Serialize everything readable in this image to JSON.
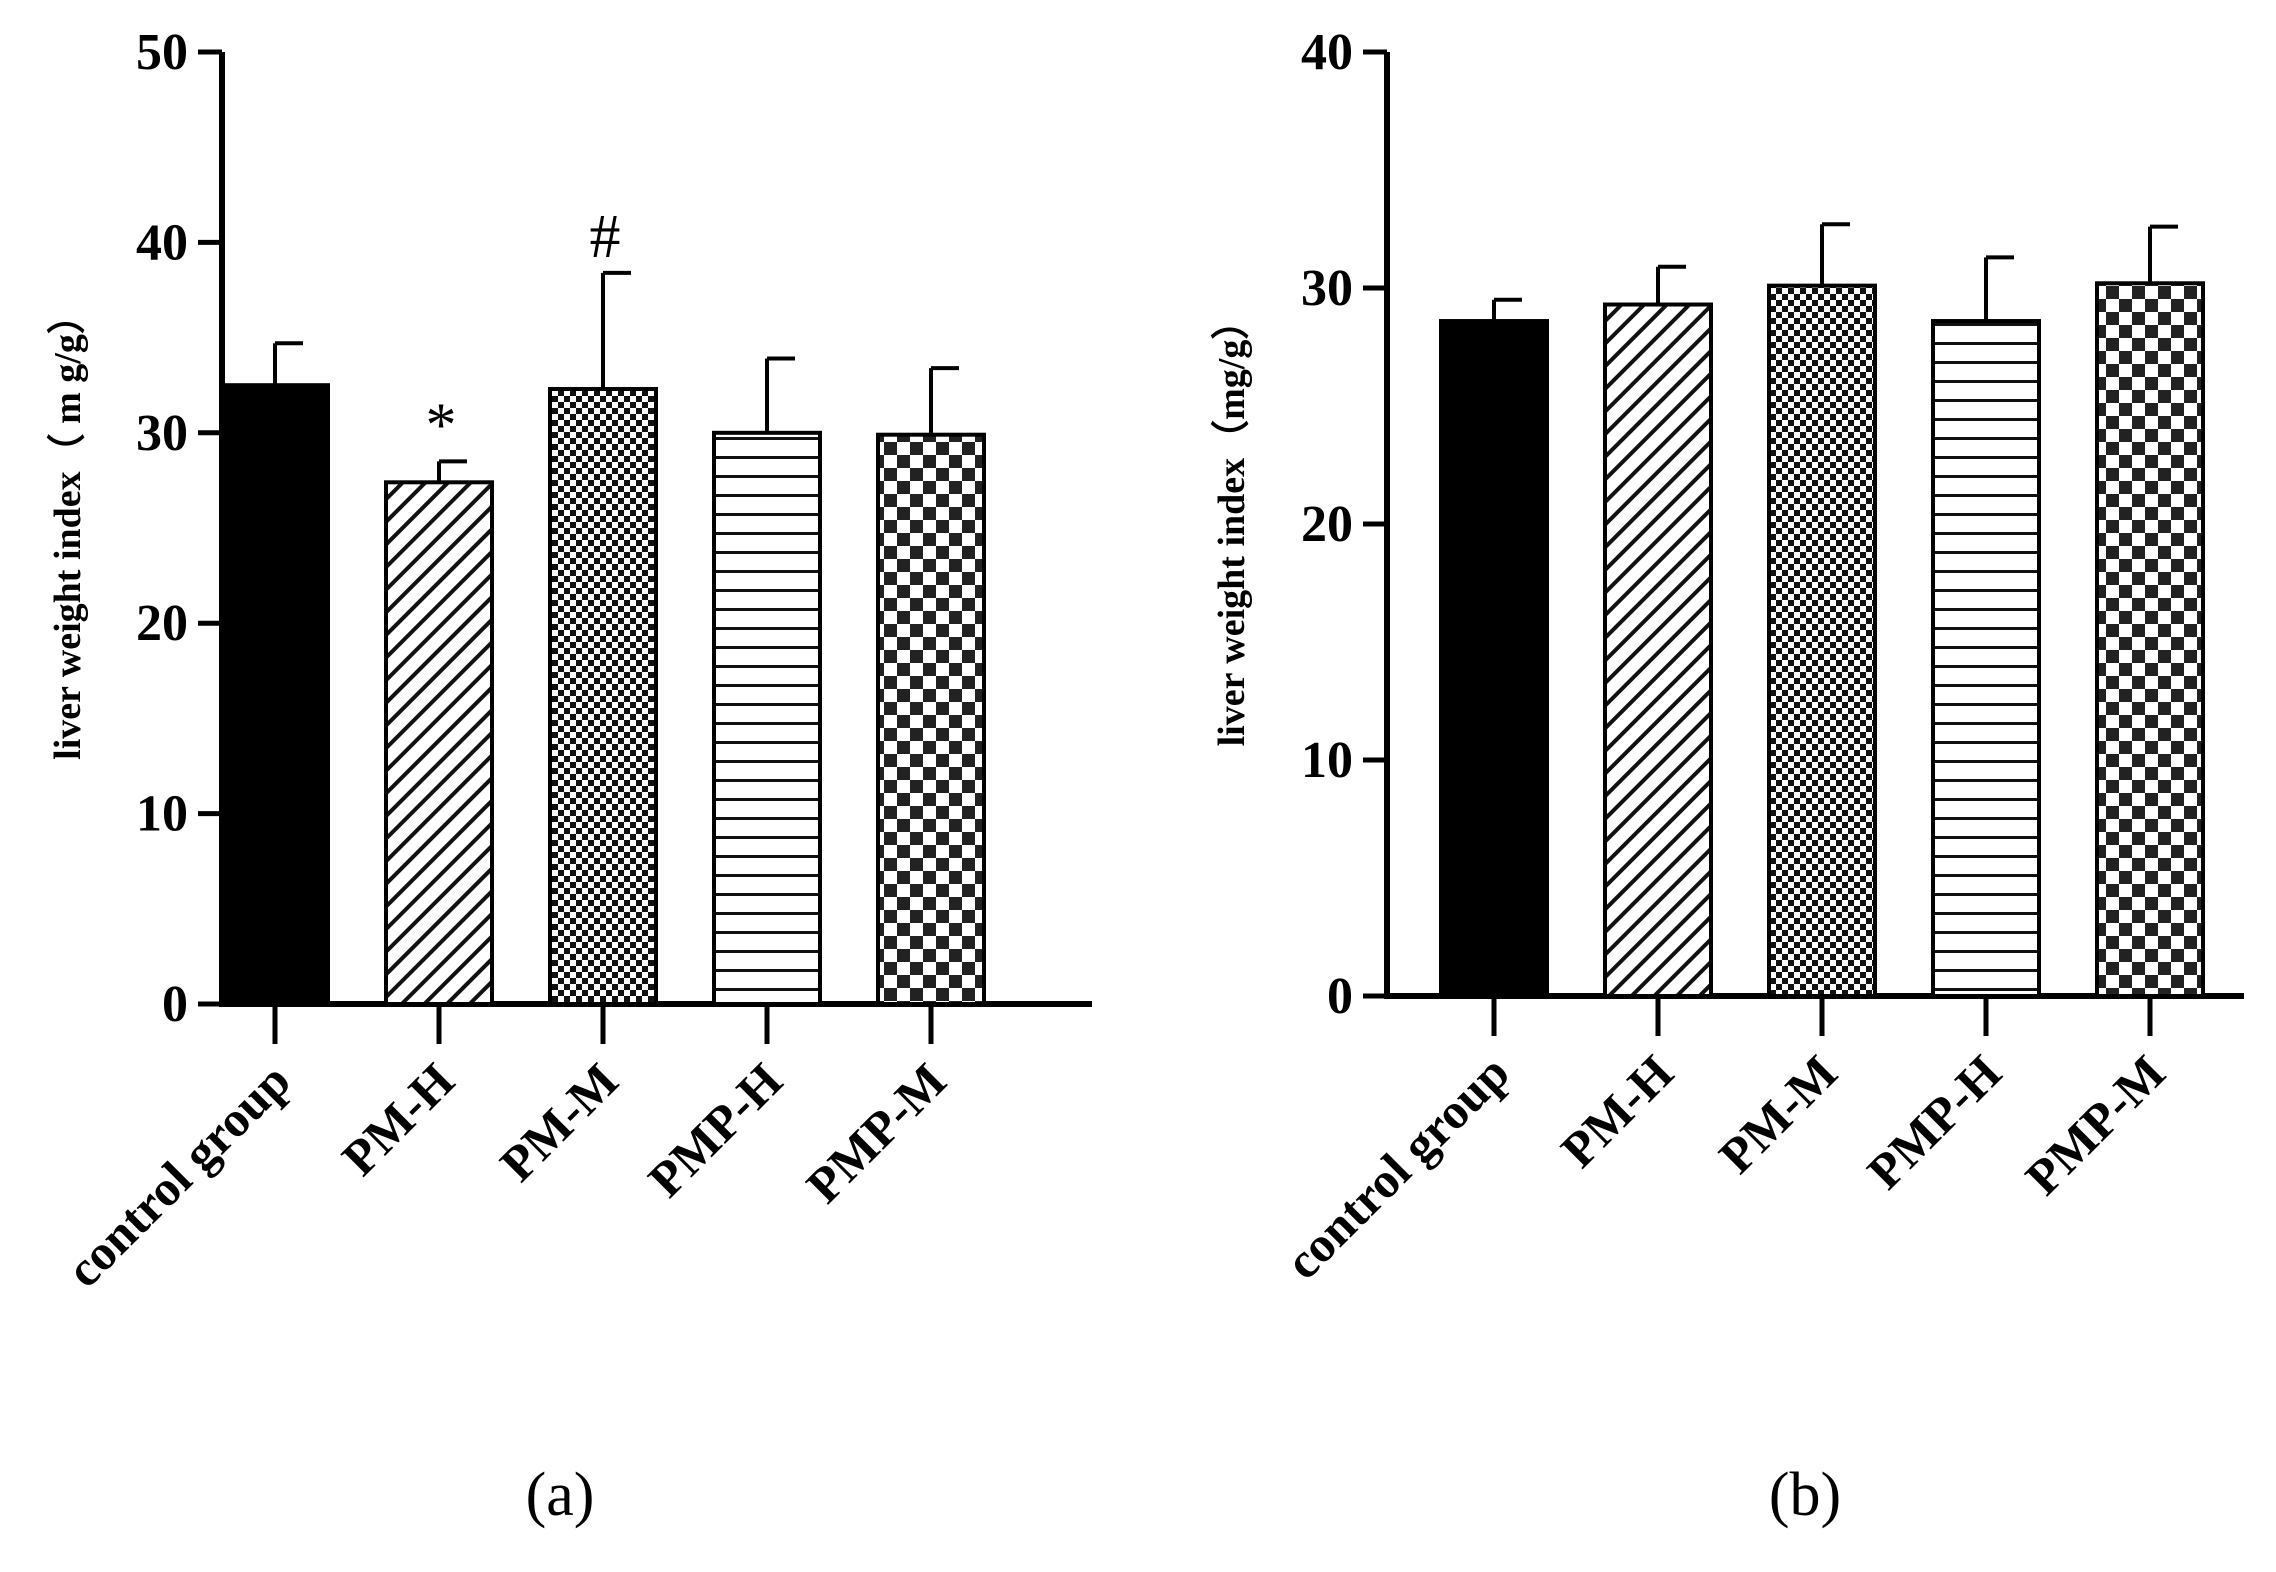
{
  "chart_data": [
    {
      "type": "bar",
      "panel_label": "(a)",
      "ylabel": "liver weight index（ m g/g）",
      "ylim": [
        0,
        50
      ],
      "yticks": [
        0,
        10,
        20,
        30,
        40,
        50
      ],
      "categories": [
        "control group",
        "PM-H",
        "PM-M",
        "PMP-H",
        "PMP-M"
      ],
      "values": [
        32.5,
        27.4,
        32.3,
        30.0,
        29.9
      ],
      "errors": [
        2.2,
        1.1,
        6.1,
        3.9,
        3.5
      ],
      "patterns": [
        "solid",
        "diagonal",
        "fine-checker",
        "horizontal",
        "checker"
      ],
      "annotations": [
        "",
        "*",
        "#",
        "",
        ""
      ],
      "grid": false,
      "legend": "none"
    },
    {
      "type": "bar",
      "panel_label": "(b)",
      "ylabel": "liver weight index（mg/g）",
      "ylim": [
        0,
        40
      ],
      "yticks": [
        0,
        10,
        20,
        30,
        40
      ],
      "categories": [
        "control group",
        "PM-H",
        "PM-M",
        "PMP-H",
        "PMP-M"
      ],
      "values": [
        28.6,
        29.3,
        30.1,
        28.6,
        30.2
      ],
      "errors": [
        0.9,
        1.6,
        2.6,
        2.7,
        2.4
      ],
      "patterns": [
        "solid",
        "diagonal",
        "fine-checker",
        "horizontal",
        "checker"
      ],
      "annotations": [
        "",
        "",
        "",
        "",
        ""
      ],
      "grid": false,
      "legend": "none"
    }
  ]
}
